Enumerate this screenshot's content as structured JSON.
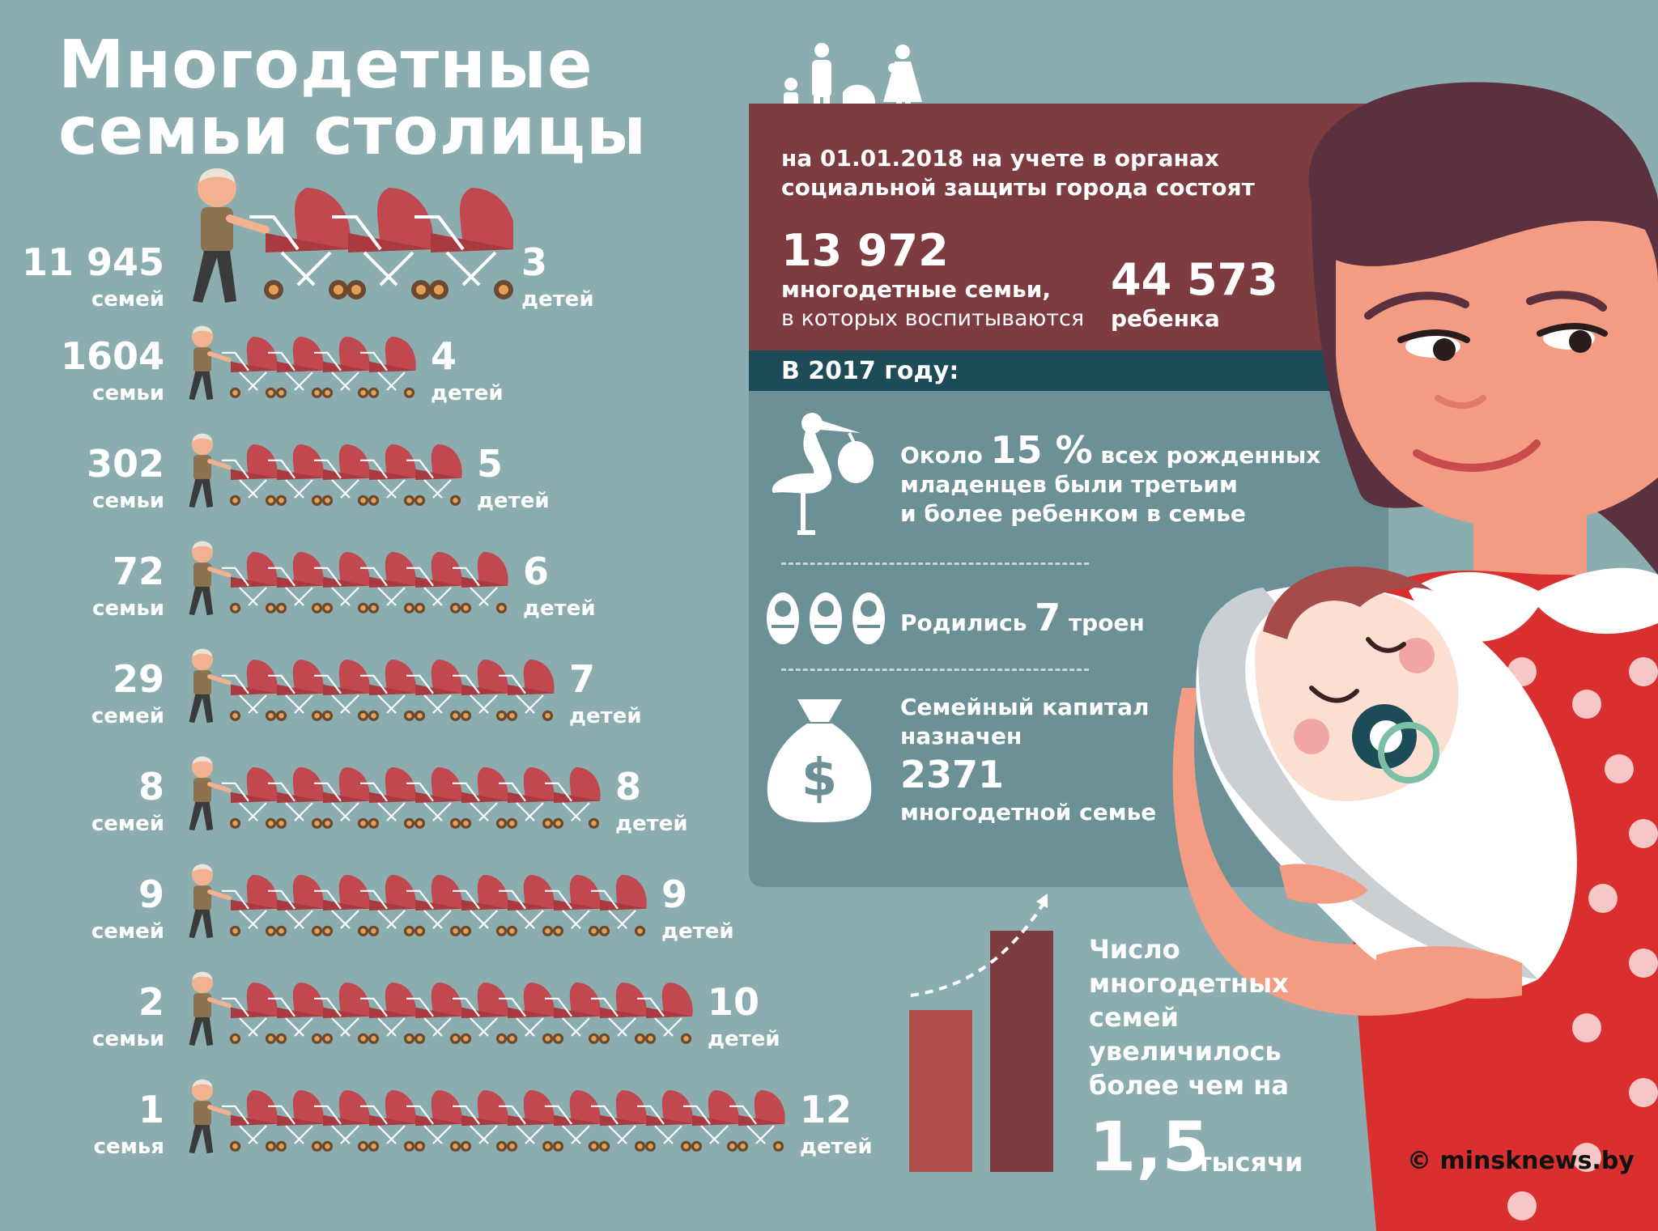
{
  "title": {
    "line1": "Многодетные",
    "line2": "семьи столицы"
  },
  "rows": [
    {
      "families": "11 945",
      "families_unit": "семей",
      "children": "3",
      "children_unit": "детей"
    },
    {
      "families": "1604",
      "families_unit": "семьи",
      "children": "4",
      "children_unit": "детей"
    },
    {
      "families": "302",
      "families_unit": "семьи",
      "children": "5",
      "children_unit": "детей"
    },
    {
      "families": "72",
      "families_unit": "семьи",
      "children": "6",
      "children_unit": "детей"
    },
    {
      "families": "29",
      "families_unit": "семей",
      "children": "7",
      "children_unit": "детей"
    },
    {
      "families": "8",
      "families_unit": "семей",
      "children": "8",
      "children_unit": "детей"
    },
    {
      "families": "9",
      "families_unit": "семей",
      "children": "9",
      "children_unit": "детей"
    },
    {
      "families": "2",
      "families_unit": "семьи",
      "children": "10",
      "children_unit": "детей"
    },
    {
      "families": "1",
      "families_unit": "семья",
      "children": "12",
      "children_unit": "детей"
    }
  ],
  "registry": {
    "intro_line1": "на 01.01.2018 на учете в органах",
    "intro_line2": "социальной защиты города состоят",
    "families_value": "13 972",
    "families_label": "многодетные семьи,",
    "families_sub": "в которых воспитываются",
    "children_value": "44 573",
    "children_label": "ребенка"
  },
  "year_header": "В 2017 году:",
  "facts": {
    "births_pre": "Около",
    "births_value": "15 %",
    "births_post": "всех рожденных",
    "births_line2": "младенцев были третьим",
    "births_line3": "и более ребенком в семье",
    "triplets_pre": "Родились",
    "triplets_value": "7",
    "triplets_post": "троен",
    "capital_line1": "Семейный капитал",
    "capital_line2": "назначен",
    "capital_value": "2371",
    "capital_label": "многодетной семье"
  },
  "growth": {
    "line1": "Число",
    "line2": "многодетных",
    "line3": "семей",
    "line4": "увеличилось",
    "line5": "более чем на",
    "value": "1,5",
    "unit": "тысячи"
  },
  "credit": "© minsknews.by",
  "colors": {
    "background": "#8badb0",
    "maroon": "#7c3c40",
    "teal_dark": "#1e4b58",
    "teal_panel": "#6b9197",
    "stroller": "#c0484e",
    "dress": "#d9302f"
  }
}
